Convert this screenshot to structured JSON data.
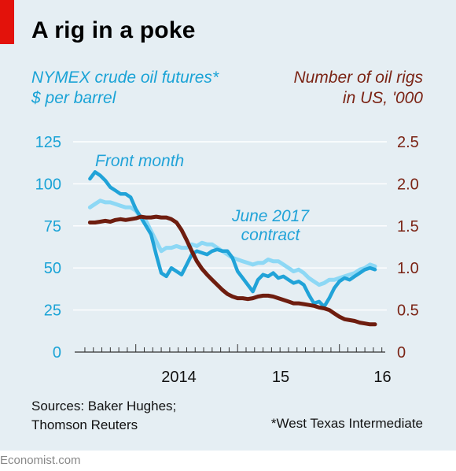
{
  "title": "A rig in a poke",
  "left_axis_label": "NYMEX crude oil futures*\n$ per barrel",
  "right_axis_label": "Number of oil rigs\nin US, '000",
  "source": "Sources: Baker Hughes;\nThomson Reuters",
  "footnote": "*West Texas Intermediate",
  "brand": "Economist.com",
  "colors": {
    "front_month": "#21a3d8",
    "june_2017": "#8dd8f5",
    "rigs": "#6e1d0f",
    "background": "#e5eef3",
    "left_axis": "#1aa3d6",
    "right_axis": "#7b2415",
    "accent_tag": "#e3120b"
  },
  "chart_data": {
    "type": "line",
    "x_range": [
      2013.4,
      2016.45
    ],
    "x_ticks": [
      {
        "value": 2014,
        "label": "2014"
      },
      {
        "value": 2015,
        "label": "15"
      },
      {
        "value": 2016,
        "label": "16"
      }
    ],
    "left_axis": {
      "ylim": [
        0,
        125
      ],
      "ticks": [
        0,
        25,
        50,
        75,
        100,
        125
      ],
      "labels": [
        "0",
        "25",
        "50",
        "75",
        "100",
        "125"
      ]
    },
    "right_axis": {
      "ylim": [
        0,
        2.5
      ],
      "ticks": [
        0,
        0.5,
        1.0,
        1.5,
        2.0,
        2.5
      ],
      "labels": [
        "0",
        "0.5",
        "1.0",
        "1.5",
        "2.0",
        "2.5"
      ]
    },
    "grid": true,
    "series": [
      {
        "name": "Front month",
        "axis": "left",
        "x": [
          2013.55,
          2013.6,
          2013.65,
          2013.7,
          2013.75,
          2013.8,
          2013.85,
          2013.9,
          2013.95,
          2014.0,
          2014.05,
          2014.1,
          2014.15,
          2014.2,
          2014.25,
          2014.3,
          2014.35,
          2014.4,
          2014.45,
          2014.5,
          2014.55,
          2014.6,
          2014.65,
          2014.7,
          2014.75,
          2014.8,
          2014.85,
          2014.9,
          2014.95,
          2015.0,
          2015.05,
          2015.1,
          2015.15,
          2015.2,
          2015.25,
          2015.3,
          2015.35,
          2015.4,
          2015.45,
          2015.5,
          2015.55,
          2015.6,
          2015.65,
          2015.7,
          2015.75,
          2015.8,
          2015.85,
          2015.9,
          2015.95,
          2016.0,
          2016.05,
          2016.1,
          2016.15,
          2016.2,
          2016.25,
          2016.3,
          2016.35
        ],
        "y": [
          103,
          107,
          105,
          102,
          98,
          96,
          94,
          94,
          92,
          85,
          80,
          75,
          70,
          58,
          47,
          45,
          50,
          48,
          46,
          52,
          58,
          60,
          59,
          58,
          60,
          61,
          60,
          60,
          56,
          48,
          44,
          40,
          36,
          43,
          46,
          45,
          47,
          44,
          45,
          43,
          41,
          42,
          40,
          34,
          29,
          30,
          27,
          32,
          38,
          42,
          44,
          43,
          45,
          47,
          49,
          50,
          49
        ]
      },
      {
        "name": "June 2017 contract",
        "axis": "left",
        "x": [
          2013.55,
          2013.6,
          2013.65,
          2013.7,
          2013.75,
          2013.8,
          2013.85,
          2013.9,
          2013.95,
          2014.0,
          2014.05,
          2014.1,
          2014.15,
          2014.2,
          2014.25,
          2014.3,
          2014.35,
          2014.4,
          2014.45,
          2014.5,
          2014.55,
          2014.6,
          2014.65,
          2014.7,
          2014.75,
          2014.8,
          2014.85,
          2014.9,
          2014.95,
          2015.0,
          2015.05,
          2015.1,
          2015.15,
          2015.2,
          2015.25,
          2015.3,
          2015.35,
          2015.4,
          2015.45,
          2015.5,
          2015.55,
          2015.6,
          2015.65,
          2015.7,
          2015.75,
          2015.8,
          2015.85,
          2015.9,
          2015.95,
          2016.0,
          2016.05,
          2016.1,
          2016.15,
          2016.2,
          2016.25,
          2016.3,
          2016.35
        ],
        "y": [
          86,
          88,
          90,
          89,
          89,
          88,
          87,
          86,
          86,
          84,
          80,
          78,
          72,
          66,
          60,
          62,
          62,
          63,
          62,
          62,
          64,
          63,
          65,
          64,
          64,
          62,
          60,
          58,
          56,
          55,
          54,
          53,
          52,
          53,
          53,
          55,
          54,
          54,
          52,
          50,
          48,
          49,
          47,
          44,
          42,
          40,
          41,
          43,
          43,
          44,
          45,
          46,
          47,
          49,
          50,
          52,
          51
        ]
      },
      {
        "name": "Number of oil rigs",
        "axis": "right",
        "x": [
          2013.55,
          2013.6,
          2013.65,
          2013.7,
          2013.75,
          2013.8,
          2013.85,
          2013.9,
          2013.95,
          2014.0,
          2014.05,
          2014.1,
          2014.15,
          2014.2,
          2014.25,
          2014.3,
          2014.35,
          2014.4,
          2014.45,
          2014.5,
          2014.55,
          2014.6,
          2014.65,
          2014.7,
          2014.75,
          2014.8,
          2014.85,
          2014.9,
          2014.95,
          2015.0,
          2015.05,
          2015.1,
          2015.15,
          2015.2,
          2015.25,
          2015.3,
          2015.35,
          2015.4,
          2015.45,
          2015.5,
          2015.55,
          2015.6,
          2015.65,
          2015.7,
          2015.75,
          2015.8,
          2015.85,
          2015.9,
          2015.95,
          2016.0,
          2016.05,
          2016.1,
          2016.15,
          2016.2,
          2016.25,
          2016.3,
          2016.35
        ],
        "y": [
          1.54,
          1.54,
          1.55,
          1.56,
          1.55,
          1.57,
          1.58,
          1.57,
          1.58,
          1.59,
          1.61,
          1.6,
          1.6,
          1.61,
          1.6,
          1.6,
          1.58,
          1.54,
          1.45,
          1.33,
          1.2,
          1.08,
          0.99,
          0.92,
          0.86,
          0.8,
          0.74,
          0.69,
          0.66,
          0.64,
          0.64,
          0.63,
          0.64,
          0.66,
          0.67,
          0.67,
          0.66,
          0.64,
          0.62,
          0.6,
          0.58,
          0.58,
          0.57,
          0.56,
          0.55,
          0.53,
          0.52,
          0.5,
          0.46,
          0.42,
          0.39,
          0.38,
          0.37,
          0.35,
          0.34,
          0.33,
          0.33
        ]
      }
    ],
    "annotations": [
      {
        "text": "Front month",
        "series": "Front month"
      },
      {
        "text": "June 2017\ncontract",
        "series": "June 2017 contract"
      }
    ]
  }
}
